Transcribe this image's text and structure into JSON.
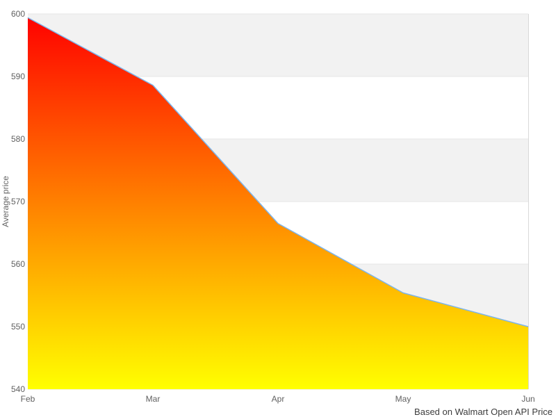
{
  "chart_data": {
    "type": "area",
    "categories": [
      "Feb",
      "Mar",
      "Apr",
      "May",
      "Jun"
    ],
    "values": [
      599.4,
      588.6,
      566.5,
      555.4,
      550.0
    ],
    "series_name": "Average price",
    "title": "",
    "xlabel": "",
    "ylabel": "Average price",
    "ylim": [
      540,
      600
    ],
    "yticks": [
      600,
      590,
      580,
      570,
      560,
      550,
      540
    ],
    "ytick_step": 10,
    "grid": "alternating horizontal bands, gray band at top interval",
    "legend": "none",
    "caption": "Based on Walmart Open API Price",
    "colors": {
      "fill_top": "#ff0000",
      "fill_bottom": "#ffff00",
      "line": "#7cb5ec",
      "band": "#f2f2f2",
      "gridline": "#e6e6e6",
      "plot_border": "#d9d9d9",
      "tick_label": "#606060",
      "axis_title": "#666666",
      "caption_text": "#3c3c3c"
    }
  }
}
